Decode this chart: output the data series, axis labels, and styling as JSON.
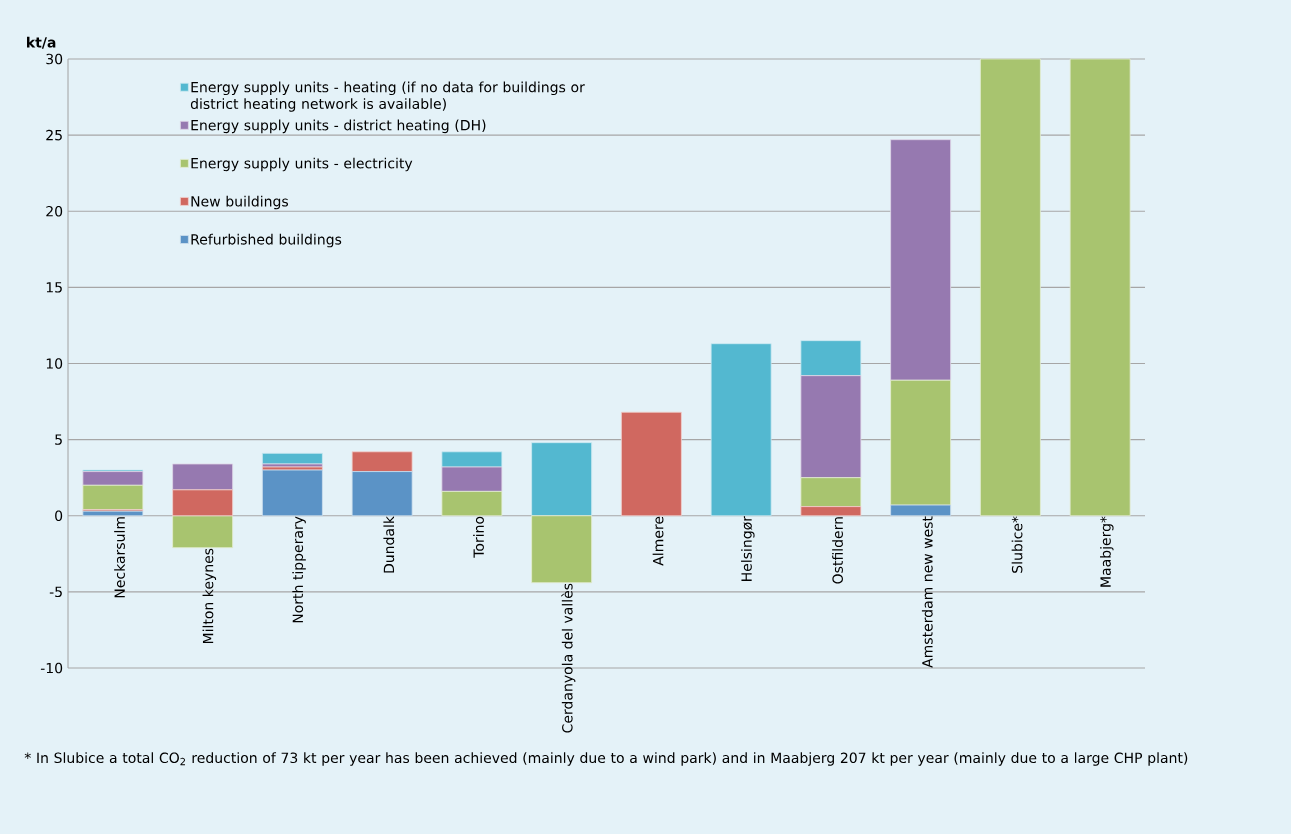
{
  "chart_data": {
    "type": "bar",
    "stacked": true,
    "ylabel": "kt/a",
    "categories": [
      "Neckarsulm",
      "Milton keynes",
      "North tipperary",
      "Dundalk",
      "Torino",
      "Cerdanyola del vallès",
      "Almere",
      "Helsingør",
      "Ostfildern",
      "Amsterdam new west",
      "Slubice*",
      "Maabjerg*"
    ],
    "series": [
      {
        "name": "Refurbished buildings",
        "color": "#5b93c6",
        "values": [
          0.3,
          null,
          3.0,
          2.9,
          null,
          null,
          null,
          null,
          null,
          0.7,
          null,
          null
        ]
      },
      {
        "name": "New buildings",
        "color": "#d06860",
        "values": [
          0.1,
          1.7,
          0.2,
          1.3,
          null,
          null,
          6.8,
          null,
          0.6,
          null,
          null,
          null
        ]
      },
      {
        "name": "Energy supply units - electricity",
        "color": "#a8c46f",
        "values": [
          1.6,
          -2.1,
          null,
          null,
          1.6,
          -4.4,
          null,
          null,
          1.9,
          8.2,
          30,
          30
        ]
      },
      {
        "name": "Energy supply units - district heating (DH)",
        "color": "#9679b0",
        "values": [
          0.9,
          1.7,
          0.2,
          null,
          1.6,
          null,
          null,
          null,
          6.7,
          15.8,
          null,
          null
        ]
      },
      {
        "name": "Energy supply units - heating (if no data for buildings or district heating network is available)",
        "color": "#53b8d0",
        "values": [
          0.1,
          null,
          0.7,
          null,
          1.0,
          4.8,
          null,
          11.3,
          2.3,
          null,
          null,
          null
        ]
      }
    ],
    "ylim": [
      -10,
      30
    ],
    "yticks": [
      -10,
      -5,
      0,
      5,
      10,
      15,
      20,
      25,
      30
    ],
    "grid": "y",
    "legend": "top left",
    "annotations": [
      "* In Slubice a total CO$_{2}$ reduction of 73 kt per year has been achieved (mainly due to a wind park) and in Maabjerg 207 kt per year (mainly due to a large CHP plant)"
    ]
  }
}
